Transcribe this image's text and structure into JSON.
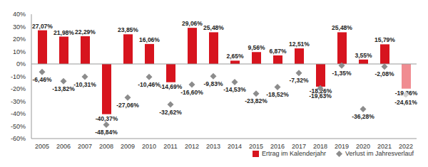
{
  "chart_data": {
    "type": "bar",
    "categories": [
      "2005",
      "2006",
      "2007",
      "2008",
      "2009",
      "2010",
      "2011",
      "2012",
      "2013",
      "2014",
      "2015",
      "2016",
      "2017",
      "2018",
      "2019",
      "2020",
      "2021",
      "2022"
    ],
    "series": [
      {
        "name": "Ertrag im Kalenderjahr",
        "type": "bar",
        "colors": [
          "#d7141e",
          "#d7141e",
          "#d7141e",
          "#d7141e",
          "#d7141e",
          "#d7141e",
          "#d7141e",
          "#d7141e",
          "#d7141e",
          "#d7141e",
          "#d7141e",
          "#d7141e",
          "#d7141e",
          "#d7141e",
          "#d7141e",
          "#d7141e",
          "#d7141e",
          "#f08c91"
        ],
        "values": [
          27.07,
          21.98,
          22.29,
          -40.37,
          23.85,
          16.06,
          -14.69,
          29.06,
          25.48,
          2.65,
          9.56,
          6.87,
          12.51,
          -18.26,
          25.48,
          3.55,
          15.79,
          -19.86
        ],
        "value_labels": [
          "27,07%",
          "21,98%",
          "22,29%",
          "-40,37%",
          "23,85%",
          "16,06%",
          "-14,69%",
          "29,06%",
          "25,48%",
          "2,65%",
          "9,56%",
          "6,87%",
          "12,51%",
          "-18,26%",
          "25,48%",
          "3,55%",
          "15,79%",
          "-19,86%"
        ]
      },
      {
        "name": "Verlust im Jahresverlauf",
        "type": "scatter",
        "marker": "diamond",
        "colors": [
          "#8c8c8c",
          "#8c8c8c",
          "#8c8c8c",
          "#8c8c8c",
          "#8c8c8c",
          "#8c8c8c",
          "#8c8c8c",
          "#8c8c8c",
          "#8c8c8c",
          "#8c8c8c",
          "#8c8c8c",
          "#8c8c8c",
          "#8c8c8c",
          "#8c8c8c",
          "#8c8c8c",
          "#8c8c8c",
          "#8c8c8c",
          "#d2d2d2"
        ],
        "values": [
          -6.46,
          -13.82,
          -10.31,
          -48.84,
          -27.06,
          -10.46,
          -32.62,
          -16.6,
          -9.83,
          -14.53,
          -23.82,
          -18.52,
          -7.32,
          -19.63,
          -1.35,
          -36.28,
          -2.08,
          -24.61
        ],
        "value_labels": [
          "-6,46%",
          "-13,82%",
          "-10,31%",
          "-48,84%",
          "-27,06%",
          "-10,46%",
          "-32,62%",
          "-16,60%",
          "-9,83%",
          "-14,53%",
          "-23,82%",
          "-18,52%",
          "-7,32%",
          "-19,63%",
          "-1,35%",
          "-36,28%",
          "-2,08%",
          "-24,61%"
        ]
      }
    ],
    "ylim": [
      -60,
      40
    ],
    "yticks": [
      {
        "value": -60,
        "label": "-60%"
      },
      {
        "value": -50,
        "label": "-50%"
      },
      {
        "value": -40,
        "label": "-40%"
      },
      {
        "value": -30,
        "label": "-30%"
      },
      {
        "value": -20,
        "label": "-20%"
      },
      {
        "value": -10,
        "label": "-10%"
      },
      {
        "value": 0,
        "label": "0%"
      },
      {
        "value": 10,
        "label": "10%"
      },
      {
        "value": 20,
        "label": "20%"
      },
      {
        "value": 30,
        "label": "30%"
      },
      {
        "value": 40,
        "label": "40%"
      }
    ],
    "grid": false,
    "legend": "bottom right",
    "data_labels": true
  }
}
